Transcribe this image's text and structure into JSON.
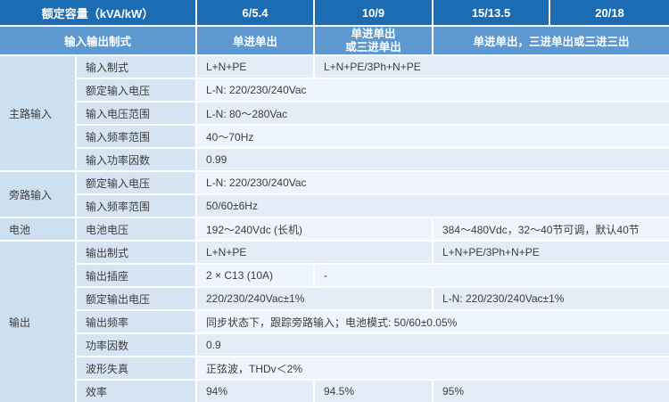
{
  "colors": {
    "header_dark_blue": "#1c6cb4",
    "header_medium_blue": "#5d99d0",
    "group_cell_blue": "#cde0f0",
    "param_cell_blue": "#d6e4f3",
    "value_row_odd": "#e4edf7",
    "value_row_even": "#eef4fb",
    "grid_border": "#ffffff",
    "header_text": "#ffffff",
    "body_text": "#3d3d3d"
  },
  "header": {
    "capacity_label": "额定容量（kVA/kW）",
    "capacity_6": "6/5.4",
    "capacity_10": "10/9",
    "capacity_15": "15/13.5",
    "capacity_20": "20/18",
    "io_mode_label": "输入输出制式",
    "io_mode_6": "单进单出",
    "io_mode_10_line1": "单进单出",
    "io_mode_10_line2": "或三进单出",
    "io_mode_15_20": "单进单出，三进单出或三进三出"
  },
  "groups": {
    "main_input": "主路输入",
    "bypass_input": "旁路输入",
    "battery": "电池",
    "output": "输出"
  },
  "rows": {
    "input_mode": {
      "label": "输入制式",
      "v1": "L+N+PE",
      "v2": "L+N+PE/3Ph+N+PE"
    },
    "rated_input_voltage": {
      "label": "额定输入电压",
      "v": "L-N: 220/230/240Vac"
    },
    "input_voltage_range": {
      "label": "输入电压范围",
      "v": "L-N: 80～280Vac"
    },
    "input_freq_range": {
      "label": "输入频率范围",
      "v": "40～70Hz"
    },
    "input_power_factor": {
      "label": "输入功率因数",
      "v": "0.99"
    },
    "bypass_rated_input_voltage": {
      "label": "额定输入电压",
      "v": "L-N: 220/230/240Vac"
    },
    "bypass_input_freq_range": {
      "label": "输入频率范围",
      "v": "50/60±6Hz"
    },
    "battery_voltage": {
      "label": "电池电压",
      "v1": "192～240Vdc (长机)",
      "v2": "384～480Vdc，32～40节可调，默认40节"
    },
    "output_mode": {
      "label": "输出制式",
      "v1": "L+N+PE",
      "v2": "L+N+PE/3Ph+N+PE"
    },
    "output_socket": {
      "label": "输出插座",
      "v1": "2 × C13 (10A)",
      "v2": "-"
    },
    "rated_output_voltage": {
      "label": "额定输出电压",
      "v1": "220/230/240Vac±1%",
      "v2": "L-N: 220/230/240Vac±1%"
    },
    "output_frequency": {
      "label": "输出频率",
      "v": "同步状态下，跟踪旁路输入；电池模式: 50/60±0.05%"
    },
    "power_factor": {
      "label": "功率因数",
      "v": "0.9"
    },
    "waveform_distortion": {
      "label": "波形失真",
      "v": "正弦波，THDv＜2%"
    },
    "efficiency": {
      "label": "效率",
      "v1": "94%",
      "v2": "94.5%",
      "v3": "95%"
    }
  }
}
